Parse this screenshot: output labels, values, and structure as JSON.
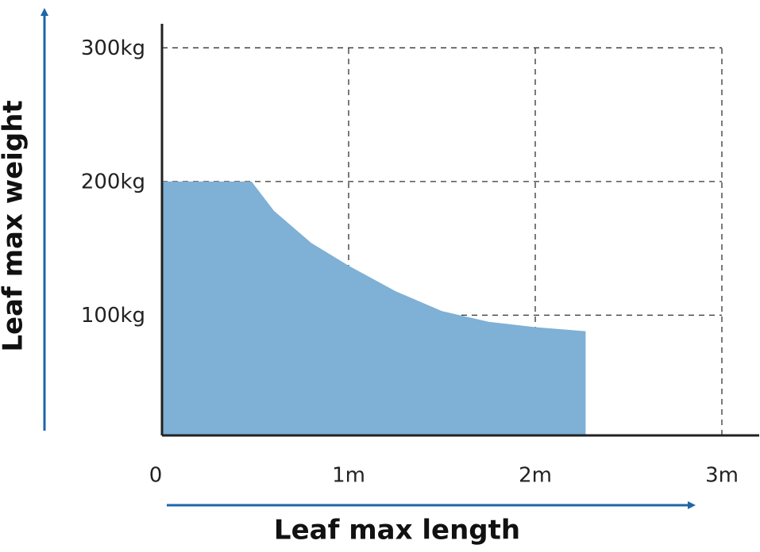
{
  "chart_data": {
    "type": "area",
    "x_label": "Leaf max length",
    "y_label": "Leaf max weight",
    "x": [
      0,
      0.48,
      0.6,
      0.8,
      1,
      1.25,
      1.5,
      1.75,
      2,
      2.27
    ],
    "values": [
      200,
      200,
      178,
      154,
      137,
      118,
      103,
      95,
      91,
      88
    ],
    "color": "#7fb0d6",
    "xlim": [
      0,
      3.2
    ],
    "ylim": [
      10,
      318
    ],
    "xticks": [
      0,
      {
        "value": 1,
        "label": "1m"
      },
      {
        "value": 2,
        "label": "2m"
      },
      {
        "value": 3,
        "label": "3m"
      }
    ],
    "yticks": [
      {
        "value": 100,
        "label": "100kg"
      },
      {
        "value": 200,
        "label": "200kg"
      },
      {
        "value": 300,
        "label": "300kg"
      }
    ],
    "grid": true
  }
}
